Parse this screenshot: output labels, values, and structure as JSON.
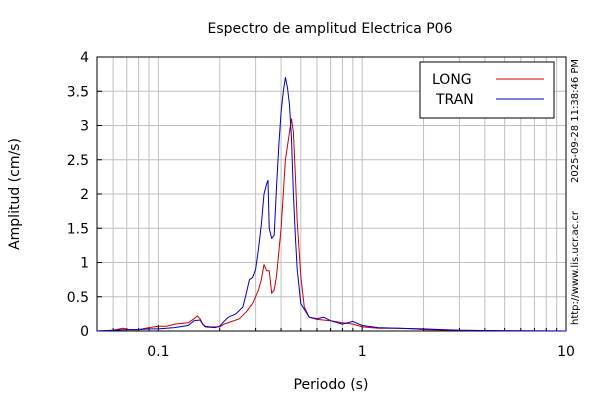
{
  "chart_data": {
    "type": "line",
    "title": "Espectro de amplitud Electrica P06",
    "xlabel": "Periodo (s)",
    "ylabel": "Amplitud (cm/s)",
    "xscale": "log",
    "xlim": [
      0.05,
      10
    ],
    "ylim": [
      0,
      4
    ],
    "grid": true,
    "legend_position": "top-right",
    "xticks": [
      {
        "value": 0.1,
        "label": "0.1"
      },
      {
        "value": 1,
        "label": "1"
      },
      {
        "value": 10,
        "label": "10"
      }
    ],
    "yticks": [
      {
        "value": 0,
        "label": "0"
      },
      {
        "value": 0.5,
        "label": "0.5"
      },
      {
        "value": 1,
        "label": "1"
      },
      {
        "value": 1.5,
        "label": "1.5"
      },
      {
        "value": 2,
        "label": "2"
      },
      {
        "value": 2.5,
        "label": "2.5"
      },
      {
        "value": 3,
        "label": "3"
      },
      {
        "value": 3.5,
        "label": "3.5"
      },
      {
        "value": 4,
        "label": "4"
      }
    ],
    "series": [
      {
        "name": "LONG",
        "color": "#cc0000",
        "points": [
          [
            0.05,
            0
          ],
          [
            0.06,
            0.01
          ],
          [
            0.067,
            0.04
          ],
          [
            0.072,
            0.02
          ],
          [
            0.08,
            0.02
          ],
          [
            0.09,
            0.05
          ],
          [
            0.1,
            0.07
          ],
          [
            0.11,
            0.07
          ],
          [
            0.12,
            0.1
          ],
          [
            0.14,
            0.12
          ],
          [
            0.15,
            0.18
          ],
          [
            0.155,
            0.22
          ],
          [
            0.16,
            0.18
          ],
          [
            0.165,
            0.1
          ],
          [
            0.17,
            0.07
          ],
          [
            0.18,
            0.06
          ],
          [
            0.2,
            0.06
          ],
          [
            0.21,
            0.1
          ],
          [
            0.23,
            0.14
          ],
          [
            0.25,
            0.18
          ],
          [
            0.27,
            0.28
          ],
          [
            0.29,
            0.4
          ],
          [
            0.31,
            0.6
          ],
          [
            0.32,
            0.75
          ],
          [
            0.33,
            0.97
          ],
          [
            0.34,
            0.88
          ],
          [
            0.35,
            0.88
          ],
          [
            0.36,
            0.55
          ],
          [
            0.37,
            0.6
          ],
          [
            0.38,
            0.8
          ],
          [
            0.4,
            1.5
          ],
          [
            0.42,
            2.5
          ],
          [
            0.44,
            2.9
          ],
          [
            0.45,
            3.1
          ],
          [
            0.46,
            2.9
          ],
          [
            0.47,
            2.3
          ],
          [
            0.48,
            1.6
          ],
          [
            0.5,
            0.8
          ],
          [
            0.52,
            0.35
          ],
          [
            0.55,
            0.2
          ],
          [
            0.6,
            0.17
          ],
          [
            0.7,
            0.15
          ],
          [
            0.8,
            0.12
          ],
          [
            0.9,
            0.1
          ],
          [
            1.0,
            0.06
          ],
          [
            1.2,
            0.04
          ],
          [
            1.5,
            0.04
          ],
          [
            1.8,
            0.03
          ],
          [
            2.0,
            0.02
          ],
          [
            3.0,
            0.01
          ],
          [
            5.0,
            0.005
          ],
          [
            10,
            0
          ]
        ]
      },
      {
        "name": "TRAN",
        "color": "#0000bb",
        "points": [
          [
            0.05,
            0
          ],
          [
            0.06,
            0.01
          ],
          [
            0.07,
            0.02
          ],
          [
            0.08,
            0.02
          ],
          [
            0.09,
            0.03
          ],
          [
            0.1,
            0.03
          ],
          [
            0.12,
            0.05
          ],
          [
            0.14,
            0.08
          ],
          [
            0.15,
            0.15
          ],
          [
            0.16,
            0.16
          ],
          [
            0.165,
            0.1
          ],
          [
            0.17,
            0.06
          ],
          [
            0.19,
            0.05
          ],
          [
            0.2,
            0.07
          ],
          [
            0.21,
            0.14
          ],
          [
            0.22,
            0.2
          ],
          [
            0.24,
            0.25
          ],
          [
            0.26,
            0.35
          ],
          [
            0.27,
            0.55
          ],
          [
            0.28,
            0.75
          ],
          [
            0.29,
            0.78
          ],
          [
            0.3,
            0.9
          ],
          [
            0.31,
            1.2
          ],
          [
            0.32,
            1.55
          ],
          [
            0.33,
            2.0
          ],
          [
            0.34,
            2.15
          ],
          [
            0.345,
            2.2
          ],
          [
            0.35,
            1.5
          ],
          [
            0.36,
            1.35
          ],
          [
            0.37,
            1.4
          ],
          [
            0.38,
            2.1
          ],
          [
            0.39,
            2.7
          ],
          [
            0.4,
            3.2
          ],
          [
            0.41,
            3.5
          ],
          [
            0.42,
            3.7
          ],
          [
            0.43,
            3.55
          ],
          [
            0.44,
            3.3
          ],
          [
            0.45,
            2.8
          ],
          [
            0.46,
            2.0
          ],
          [
            0.47,
            1.4
          ],
          [
            0.48,
            0.9
          ],
          [
            0.5,
            0.4
          ],
          [
            0.55,
            0.2
          ],
          [
            0.6,
            0.18
          ],
          [
            0.65,
            0.2
          ],
          [
            0.7,
            0.15
          ],
          [
            0.8,
            0.1
          ],
          [
            0.9,
            0.14
          ],
          [
            1.0,
            0.08
          ],
          [
            1.2,
            0.05
          ],
          [
            1.5,
            0.04
          ],
          [
            2.0,
            0.03
          ],
          [
            3.0,
            0.01
          ],
          [
            5.0,
            0.005
          ],
          [
            10,
            0
          ]
        ]
      }
    ],
    "side_text": {
      "timestamp": "2025-09-28 11:38:46 PM",
      "url": "http://www.lis.ucr.ac.cr"
    }
  }
}
